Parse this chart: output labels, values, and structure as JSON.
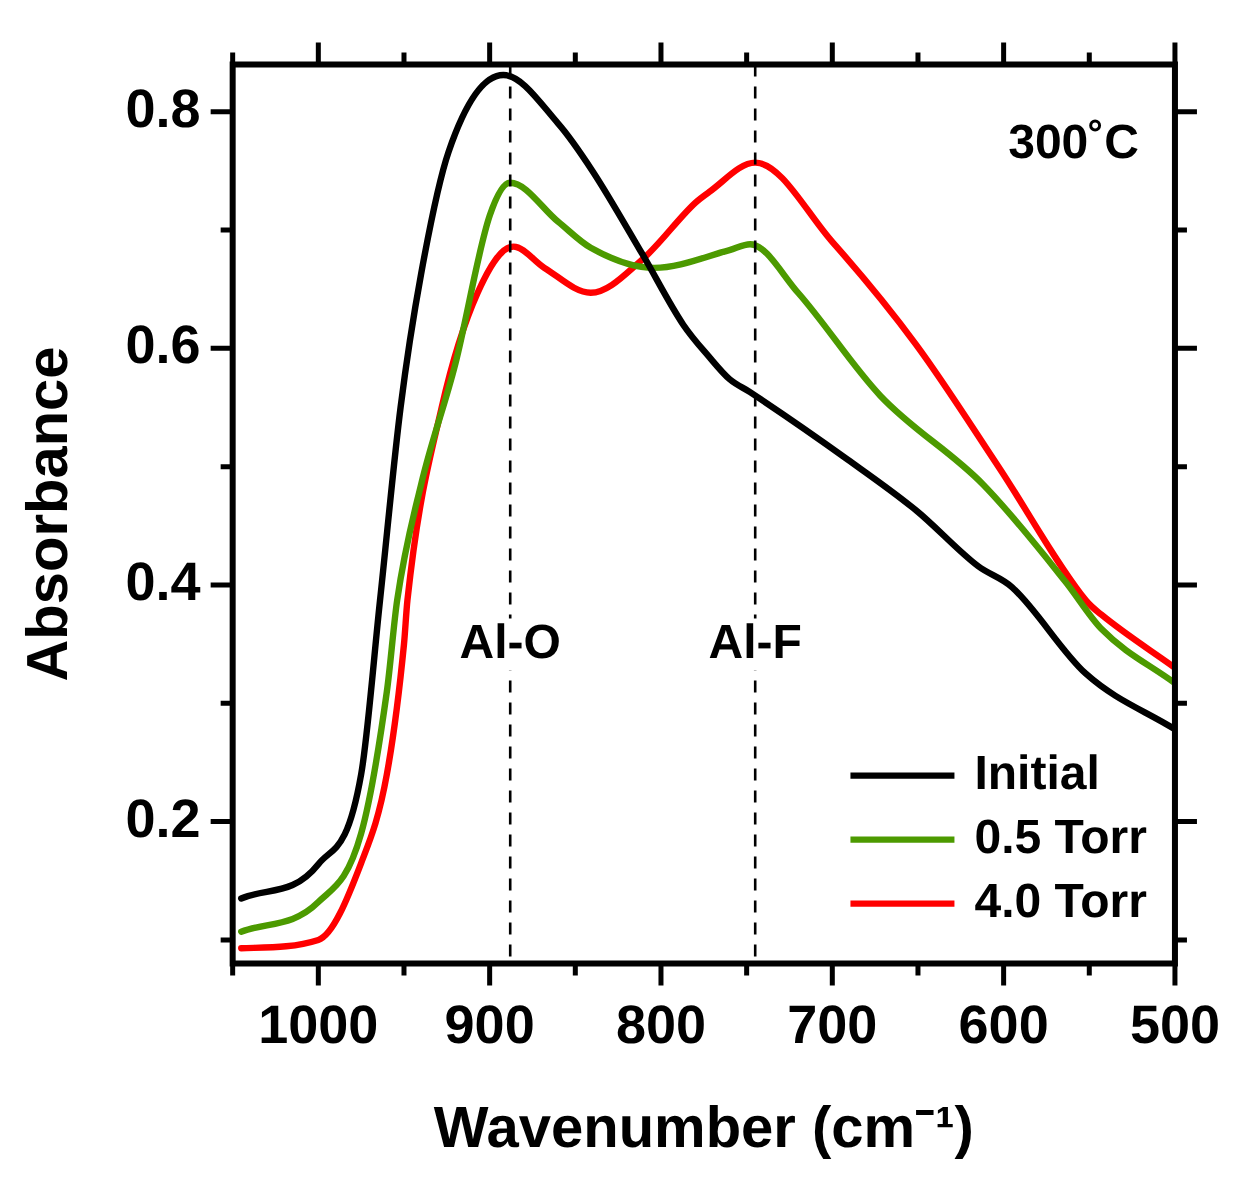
{
  "chart_data": {
    "type": "line",
    "xlabel": "Wavenumber (cm⁻¹)",
    "ylabel": "Absorbance",
    "annotations": [
      "300˚C"
    ],
    "xlim": [
      1050,
      500
    ],
    "ylim": [
      0.08,
      0.84
    ],
    "xticks": [
      {
        "value": 1050,
        "label": null
      },
      1000,
      {
        "value": 950,
        "label": null
      },
      900,
      {
        "value": 850,
        "label": null
      },
      800,
      {
        "value": 750,
        "label": null
      },
      700,
      {
        "value": 650,
        "label": null
      },
      600,
      {
        "value": 550,
        "label": null
      },
      500
    ],
    "yticks": [
      {
        "value": 0.1,
        "label": null
      },
      0.2,
      {
        "value": 0.3,
        "label": null
      },
      0.4,
      {
        "value": 0.5,
        "label": null
      },
      0.6,
      {
        "value": 0.7,
        "label": null
      },
      0.8
    ],
    "grid": false,
    "legend": "bottom right",
    "marker": "none",
    "line_style": "solid",
    "ref_lines": [
      {
        "axis": "x",
        "value": 888,
        "label": "Al-O",
        "color": "#000000",
        "line_style": "dashed"
      },
      {
        "axis": "x",
        "value": 745,
        "label": "Al-F",
        "color": "#000000",
        "line_style": "dashed"
      }
    ],
    "series": [
      {
        "name": "Initial",
        "color": "#000000",
        "x": [
          1045,
          1000,
          975,
          964,
          952,
          940,
          924,
          892,
          860,
          840,
          811,
          787,
          772,
          760,
          748,
          691,
          651,
          615,
          595,
          552,
          500
        ],
        "values": [
          0.135,
          0.164,
          0.24,
          0.387,
          0.55,
          0.663,
          0.766,
          0.831,
          0.79,
          0.75,
          0.68,
          0.62,
          0.593,
          0.574,
          0.563,
          0.506,
          0.463,
          0.416,
          0.398,
          0.325,
          0.278
        ]
      },
      {
        "name": "0.5 Torr",
        "color": "#4c9a00",
        "x": [
          1045,
          1000,
          975,
          960,
          954,
          940,
          920,
          900,
          888,
          860,
          841,
          804,
          760,
          748,
          720,
          672,
          612,
          564,
          543,
          500
        ],
        "values": [
          0.107,
          0.132,
          0.19,
          0.31,
          0.387,
          0.485,
          0.587,
          0.712,
          0.74,
          0.707,
          0.685,
          0.668,
          0.683,
          0.688,
          0.647,
          0.56,
          0.485,
          0.403,
          0.363,
          0.317
        ]
      },
      {
        "name": "4.0 Torr",
        "color": "#ff0000",
        "x": [
          1045,
          1000,
          975,
          960,
          950,
          948,
          928,
          907,
          886,
          868,
          841,
          811,
          780,
          772,
          745,
          700,
          651,
          603,
          552,
          543,
          500
        ],
        "values": [
          0.093,
          0.1,
          0.165,
          0.24,
          0.35,
          0.387,
          0.55,
          0.647,
          0.686,
          0.668,
          0.647,
          0.675,
          0.723,
          0.732,
          0.757,
          0.69,
          0.603,
          0.5,
          0.387,
          0.375,
          0.33
        ]
      }
    ]
  }
}
